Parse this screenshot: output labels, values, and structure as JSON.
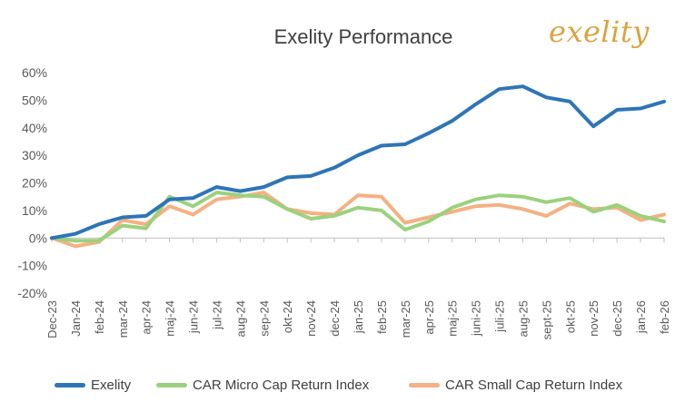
{
  "brand": {
    "logo_text": "exelity",
    "logo_color": "#d9a441"
  },
  "chart_data": {
    "type": "line",
    "title": "Exelity Performance",
    "xlabel": "",
    "ylabel": "",
    "ylim": [
      -20,
      60
    ],
    "yticks": [
      -20,
      -10,
      0,
      10,
      20,
      30,
      40,
      50,
      60
    ],
    "ytick_labels": [
      "-20%",
      "-10%",
      "0%",
      "10%",
      "20%",
      "30%",
      "40%",
      "50%",
      "60%"
    ],
    "grid": false,
    "legend_position": "bottom",
    "categories": [
      "Dec-23",
      "Jan-24",
      "feb-24",
      "mar-24",
      "apr-24",
      "maj-24",
      "jun-24",
      "jul-24",
      "aug-24",
      "sep-24",
      "okt-24",
      "nov-24",
      "dec-24",
      "jan-25",
      "feb-25",
      "mar-25",
      "apr-25",
      "maj-25",
      "juni-25",
      "juli-25",
      "aug-25",
      "sept-25",
      "okt-25",
      "nov-25",
      "dec-25",
      "jan-26",
      "feb-26"
    ],
    "series": [
      {
        "name": "Exelity",
        "color": "#2e75b6",
        "values": [
          0,
          1.5,
          5,
          7.5,
          8,
          14,
          14.5,
          18.5,
          17,
          18.5,
          22,
          22.5,
          25.5,
          30,
          33.5,
          34,
          38,
          42.5,
          48.5,
          54,
          55,
          51,
          49.5,
          40.5,
          46.5,
          47,
          49.5
        ]
      },
      {
        "name": "CAR Micro Cap Return Index",
        "color": "#9bd17e",
        "values": [
          0,
          -1,
          -1,
          4.5,
          3.5,
          15,
          11.5,
          16.5,
          15.5,
          15,
          10.5,
          7,
          8,
          11,
          10,
          3,
          6,
          11,
          14,
          15.5,
          15,
          13,
          14.5,
          9.5,
          12,
          8,
          6
        ]
      },
      {
        "name": "CAR Small Cap Return Index",
        "color": "#f4b183",
        "values": [
          0,
          -3,
          -1.5,
          6.5,
          5,
          11.5,
          8.5,
          14,
          15,
          16.5,
          10.5,
          9,
          8.5,
          15.5,
          15,
          5.5,
          7.5,
          9.5,
          11.5,
          12,
          10.5,
          8,
          12.5,
          10.5,
          11,
          6.5,
          8.5
        ]
      }
    ]
  }
}
